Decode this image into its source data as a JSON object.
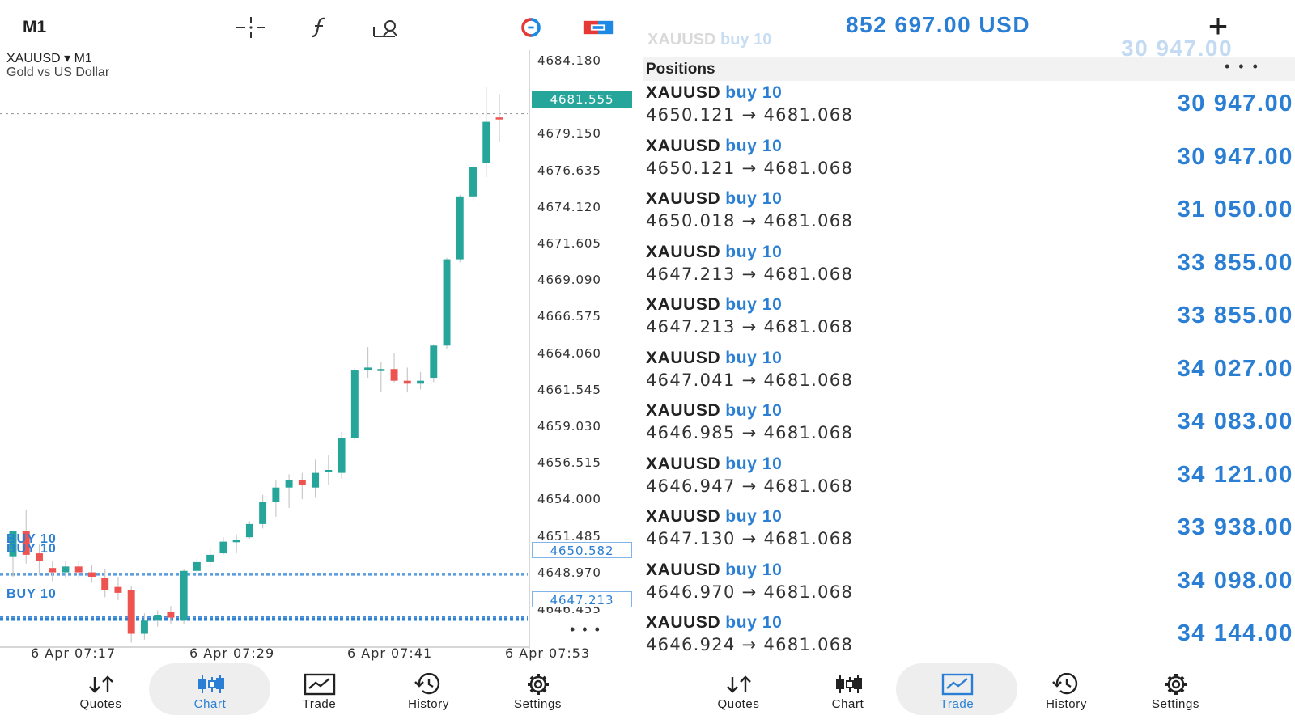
{
  "chart_screen": {
    "timeframe": "M1",
    "toolbar_icons": [
      "crosshair-icon",
      "indicators-icon",
      "objects-icon",
      "trade-toggle-icon",
      "one-click-trade-icon"
    ],
    "symbol": "XAUUSD ▾ M1",
    "symbol_description": "Gold vs US Dollar",
    "price_axis": [
      "4684.180",
      "4679.150",
      "4676.635",
      "4674.120",
      "4671.605",
      "4669.090",
      "4666.575",
      "4664.060",
      "4661.545",
      "4659.030",
      "4656.515",
      "4654.000",
      "4651.485",
      "4648.970",
      "4646.455"
    ],
    "current_price": "4681.555",
    "position_price_tags": [
      "4650.582",
      "4647.213"
    ],
    "position_markers": [
      "BUY 10",
      "BUY 10",
      "BUY 10"
    ],
    "time_axis": [
      "6 Apr 07:17",
      "6 Apr 07:29",
      "6 Apr 07:41",
      "6 Apr 07:53"
    ],
    "more_dots": "• • •",
    "colors": {
      "bull": "#26a69a",
      "bear": "#ef5350",
      "position_line": "#2a7fd4"
    }
  },
  "chart_data": {
    "type": "candlestick",
    "symbol": "XAUUSD",
    "timeframe": "M1",
    "ylim": [
      4645.2,
      4685.9
    ],
    "candles": [
      {
        "o": 4651.3,
        "h": 4653.0,
        "l": 4649.9,
        "c": 4653.0
      },
      {
        "o": 4653.0,
        "h": 4654.5,
        "l": 4650.8,
        "c": 4651.4
      },
      {
        "o": 4651.5,
        "h": 4652.1,
        "l": 4650.0,
        "c": 4651.0
      },
      {
        "o": 4650.5,
        "h": 4651.0,
        "l": 4649.6,
        "c": 4650.2
      },
      {
        "o": 4650.2,
        "h": 4651.0,
        "l": 4649.8,
        "c": 4650.6
      },
      {
        "o": 4650.6,
        "h": 4651.0,
        "l": 4649.8,
        "c": 4650.2
      },
      {
        "o": 4650.2,
        "h": 4650.7,
        "l": 4649.5,
        "c": 4649.9
      },
      {
        "o": 4649.8,
        "h": 4650.4,
        "l": 4648.5,
        "c": 4649.0
      },
      {
        "o": 4649.2,
        "h": 4649.9,
        "l": 4648.3,
        "c": 4648.8
      },
      {
        "o": 4649.0,
        "h": 4649.3,
        "l": 4645.4,
        "c": 4646.0
      },
      {
        "o": 4646.0,
        "h": 4647.4,
        "l": 4645.6,
        "c": 4646.9
      },
      {
        "o": 4646.9,
        "h": 4647.6,
        "l": 4646.5,
        "c": 4647.3
      },
      {
        "o": 4647.5,
        "h": 4647.9,
        "l": 4646.7,
        "c": 4647.1
      },
      {
        "o": 4646.9,
        "h": 4650.4,
        "l": 4646.7,
        "c": 4650.3
      },
      {
        "o": 4650.3,
        "h": 4651.2,
        "l": 4649.9,
        "c": 4650.9
      },
      {
        "o": 4650.9,
        "h": 4651.8,
        "l": 4650.6,
        "c": 4651.4
      },
      {
        "o": 4651.5,
        "h": 4652.6,
        "l": 4651.4,
        "c": 4652.3
      },
      {
        "o": 4652.3,
        "h": 4652.8,
        "l": 4651.5,
        "c": 4652.4
      },
      {
        "o": 4652.6,
        "h": 4653.7,
        "l": 4652.5,
        "c": 4653.5
      },
      {
        "o": 4653.5,
        "h": 4655.5,
        "l": 4653.2,
        "c": 4655.0
      },
      {
        "o": 4655.0,
        "h": 4656.5,
        "l": 4654.0,
        "c": 4656.0
      },
      {
        "o": 4656.0,
        "h": 4656.9,
        "l": 4654.6,
        "c": 4656.5
      },
      {
        "o": 4656.5,
        "h": 4657.0,
        "l": 4655.2,
        "c": 4656.2
      },
      {
        "o": 4656.0,
        "h": 4657.9,
        "l": 4655.3,
        "c": 4657.0
      },
      {
        "o": 4657.1,
        "h": 4658.2,
        "l": 4656.2,
        "c": 4657.2
      },
      {
        "o": 4657.0,
        "h": 4659.8,
        "l": 4656.6,
        "c": 4659.4
      },
      {
        "o": 4659.4,
        "h": 4664.2,
        "l": 4659.2,
        "c": 4664.0
      },
      {
        "o": 4664.0,
        "h": 4665.6,
        "l": 4663.5,
        "c": 4664.2
      },
      {
        "o": 4664.1,
        "h": 4664.6,
        "l": 4662.5,
        "c": 4664.1
      },
      {
        "o": 4664.1,
        "h": 4665.2,
        "l": 4663.2,
        "c": 4663.3
      },
      {
        "o": 4663.3,
        "h": 4664.2,
        "l": 4662.5,
        "c": 4663.1
      },
      {
        "o": 4663.1,
        "h": 4663.9,
        "l": 4662.7,
        "c": 4663.3
      },
      {
        "o": 4663.5,
        "h": 4665.8,
        "l": 4663.2,
        "c": 4665.7
      },
      {
        "o": 4665.7,
        "h": 4671.7,
        "l": 4665.5,
        "c": 4671.6
      },
      {
        "o": 4671.6,
        "h": 4676.0,
        "l": 4671.4,
        "c": 4675.9
      },
      {
        "o": 4675.9,
        "h": 4678.0,
        "l": 4675.6,
        "c": 4677.9
      },
      {
        "o": 4678.2,
        "h": 4683.4,
        "l": 4677.2,
        "c": 4681.0
      },
      {
        "o": 4681.3,
        "h": 4682.9,
        "l": 4679.6,
        "c": 4681.2
      }
    ]
  },
  "trade_screen": {
    "balance": "852 697.00 USD",
    "add_label": "+",
    "ghost_row": {
      "symbol": "XAUUSD",
      "side": "buy 10",
      "profit": "30 947.00"
    },
    "positions_header": "Positions",
    "header_dots": "• • •",
    "arrow": "→",
    "positions": [
      {
        "symbol": "XAUUSD",
        "side": "buy 10",
        "open": "4650.121",
        "current": "4681.068",
        "profit": "30 947.00"
      },
      {
        "symbol": "XAUUSD",
        "side": "buy 10",
        "open": "4650.121",
        "current": "4681.068",
        "profit": "30 947.00"
      },
      {
        "symbol": "XAUUSD",
        "side": "buy 10",
        "open": "4650.018",
        "current": "4681.068",
        "profit": "31 050.00"
      },
      {
        "symbol": "XAUUSD",
        "side": "buy 10",
        "open": "4647.213",
        "current": "4681.068",
        "profit": "33 855.00"
      },
      {
        "symbol": "XAUUSD",
        "side": "buy 10",
        "open": "4647.213",
        "current": "4681.068",
        "profit": "33 855.00"
      },
      {
        "symbol": "XAUUSD",
        "side": "buy 10",
        "open": "4647.041",
        "current": "4681.068",
        "profit": "34 027.00"
      },
      {
        "symbol": "XAUUSD",
        "side": "buy 10",
        "open": "4646.985",
        "current": "4681.068",
        "profit": "34 083.00"
      },
      {
        "symbol": "XAUUSD",
        "side": "buy 10",
        "open": "4646.947",
        "current": "4681.068",
        "profit": "34 121.00"
      },
      {
        "symbol": "XAUUSD",
        "side": "buy 10",
        "open": "4647.130",
        "current": "4681.068",
        "profit": "33 938.00"
      },
      {
        "symbol": "XAUUSD",
        "side": "buy 10",
        "open": "4646.970",
        "current": "4681.068",
        "profit": "34 098.00"
      },
      {
        "symbol": "XAUUSD",
        "side": "buy 10",
        "open": "4646.924",
        "current": "4681.068",
        "profit": "34 144.00"
      }
    ]
  },
  "nav": {
    "items": [
      {
        "label": "Quotes",
        "icon": "quotes-icon"
      },
      {
        "label": "Chart",
        "icon": "chart-icon"
      },
      {
        "label": "Trade",
        "icon": "trade-icon"
      },
      {
        "label": "History",
        "icon": "history-icon"
      },
      {
        "label": "Settings",
        "icon": "settings-icon"
      }
    ],
    "left_active": "Chart",
    "right_active": "Trade"
  }
}
